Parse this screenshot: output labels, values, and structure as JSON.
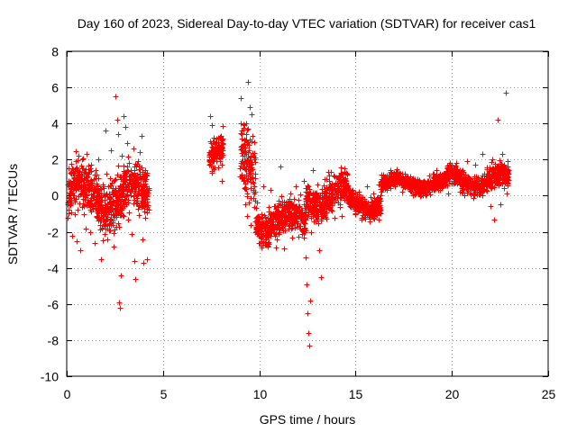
{
  "chart_data": {
    "type": "scatter",
    "title": "Day 160 of 2023, Sidereal Day-to-day VTEC variation (SDTVAR) for receiver cas1",
    "xlabel": "GPS time / hours",
    "ylabel": "SDTVAR / TECUs",
    "xlim": [
      0,
      25
    ],
    "ylim": [
      -10,
      8
    ],
    "x_ticks": [
      0,
      5,
      10,
      15,
      20,
      25
    ],
    "y_ticks": [
      -10,
      -8,
      -6,
      -4,
      -2,
      0,
      2,
      4,
      6,
      8
    ],
    "x_tick_labels": [
      "0",
      "5",
      "10",
      "15",
      "20",
      "25"
    ],
    "y_tick_labels": [
      "-10",
      "-8",
      "-6",
      "-4",
      "-2",
      "0",
      "2",
      "4",
      "6",
      "8"
    ],
    "grid": true,
    "marker": "+",
    "marker_color": "#ff0000",
    "series": [
      {
        "name": "SDTVAR",
        "segments": [
          {
            "x_start": 0.05,
            "x_end": 4.25,
            "base": 0.0,
            "spread": 2.3
          },
          {
            "x_start": 7.4,
            "x_end": 8.1,
            "base": 2.8,
            "spread": 1.4
          },
          {
            "x_start": 9.0,
            "x_end": 9.8,
            "base": 1.5,
            "spread": 3.2
          },
          {
            "x_start": 9.8,
            "x_end": 12.4,
            "base": -1.4,
            "spread": 1.5
          },
          {
            "x_start": 12.4,
            "x_end": 14.6,
            "base": 0.0,
            "spread": 1.6
          },
          {
            "x_start": 14.6,
            "x_end": 16.3,
            "base": -0.4,
            "spread": 0.9
          },
          {
            "x_start": 16.3,
            "x_end": 19.7,
            "base": 0.7,
            "spread": 0.7
          },
          {
            "x_start": 19.7,
            "x_end": 22.95,
            "base": 0.9,
            "spread": 1.0
          }
        ],
        "points": [
          [
            0.1,
            1.5
          ],
          [
            0.15,
            -0.5
          ],
          [
            0.22,
            1.2
          ],
          [
            0.28,
            -2.2
          ],
          [
            0.33,
            0.8
          ],
          [
            0.4,
            -1.0
          ],
          [
            0.45,
            1.9
          ],
          [
            0.5,
            -2.5
          ],
          [
            0.55,
            -0.8
          ],
          [
            0.6,
            1.0
          ],
          [
            0.68,
            -3.0
          ],
          [
            0.75,
            0.5
          ],
          [
            0.8,
            2.0
          ],
          [
            0.85,
            -0.2
          ],
          [
            0.9,
            1.3
          ],
          [
            1.0,
            -1.8
          ],
          [
            1.05,
            2.3
          ],
          [
            1.12,
            0.3
          ],
          [
            1.2,
            -2.0
          ],
          [
            1.25,
            1.7
          ],
          [
            1.3,
            -0.6
          ],
          [
            1.4,
            0.9
          ],
          [
            1.45,
            -2.6
          ],
          [
            1.5,
            1.4
          ],
          [
            1.6,
            -1.2
          ],
          [
            1.65,
            2.0
          ],
          [
            1.7,
            -0.4
          ],
          [
            1.8,
            -3.5
          ],
          [
            1.85,
            0.6
          ],
          [
            1.9,
            -1.6
          ],
          [
            2.0,
            3.6
          ],
          [
            2.05,
            1.2
          ],
          [
            2.1,
            -2.4
          ],
          [
            2.18,
            0.1
          ],
          [
            2.25,
            -1.9
          ],
          [
            2.3,
            2.5
          ],
          [
            2.4,
            0.4
          ],
          [
            2.45,
            -2.8
          ],
          [
            2.55,
            5.5
          ],
          [
            2.6,
            4.2
          ],
          [
            2.65,
            3.4
          ],
          [
            2.72,
            -5.9
          ],
          [
            2.75,
            -6.2
          ],
          [
            2.8,
            -4.4
          ],
          [
            2.85,
            2.2
          ],
          [
            2.9,
            0.8
          ],
          [
            2.95,
            4.4
          ],
          [
            3.05,
            3.8
          ],
          [
            3.1,
            -0.5
          ],
          [
            3.15,
            2.9
          ],
          [
            3.2,
            -1.3
          ],
          [
            3.25,
            1.8
          ],
          [
            3.3,
            0.2
          ],
          [
            3.38,
            -2.1
          ],
          [
            3.45,
            2.6
          ],
          [
            3.5,
            -3.6
          ],
          [
            3.55,
            -4.6
          ],
          [
            3.6,
            0.7
          ],
          [
            3.68,
            1.9
          ],
          [
            3.75,
            -0.6
          ],
          [
            3.8,
            2.4
          ],
          [
            3.9,
            3.3
          ],
          [
            3.95,
            -2.4
          ],
          [
            4.0,
            -3.7
          ],
          [
            4.05,
            1.4
          ],
          [
            4.15,
            -3.5
          ],
          [
            7.45,
            4.4
          ],
          [
            7.55,
            3.9
          ],
          [
            7.65,
            3.2
          ],
          [
            7.8,
            2.6
          ],
          [
            7.95,
            1.9
          ],
          [
            8.05,
            0.8
          ],
          [
            8.0,
            3.3
          ],
          [
            7.9,
            2.2
          ],
          [
            8.1,
            2.9
          ],
          [
            9.05,
            5.4
          ],
          [
            9.12,
            1.0
          ],
          [
            9.2,
            3.9
          ],
          [
            9.28,
            -0.5
          ],
          [
            9.35,
            -1.1
          ],
          [
            9.42,
            6.3
          ],
          [
            9.48,
            2.8
          ],
          [
            9.55,
            -1.6
          ],
          [
            9.62,
            4.5
          ],
          [
            9.7,
            0.2
          ],
          [
            9.78,
            -2.0
          ],
          [
            9.2,
            1.5
          ],
          [
            9.15,
            2.2
          ],
          [
            9.3,
            3.4
          ],
          [
            9.5,
            4.9
          ],
          [
            9.65,
            3.3
          ],
          [
            9.9,
            -0.4
          ],
          [
            10.0,
            -2.6
          ],
          [
            10.1,
            -1.0
          ],
          [
            10.2,
            0.5
          ],
          [
            10.3,
            -1.8
          ],
          [
            10.4,
            -2.7
          ],
          [
            10.5,
            -0.9
          ],
          [
            10.6,
            0.3
          ],
          [
            10.7,
            -2.0
          ],
          [
            10.8,
            -1.2
          ],
          [
            10.9,
            -2.4
          ],
          [
            11.0,
            -0.3
          ],
          [
            11.1,
            1.6
          ],
          [
            11.2,
            -1.6
          ],
          [
            11.3,
            -2.9
          ],
          [
            11.4,
            -0.7
          ],
          [
            11.5,
            -1.8
          ],
          [
            11.6,
            0.1
          ],
          [
            11.7,
            -2.3
          ],
          [
            11.8,
            -1.0
          ],
          [
            11.9,
            0.5
          ],
          [
            12.0,
            -1.5
          ],
          [
            12.1,
            -0.6
          ],
          [
            12.2,
            -2.1
          ],
          [
            12.3,
            0.8
          ],
          [
            12.4,
            -3.4
          ],
          [
            12.45,
            -4.9
          ],
          [
            12.5,
            -6.5
          ],
          [
            12.55,
            -7.6
          ],
          [
            12.6,
            -8.3
          ],
          [
            12.65,
            -5.8
          ],
          [
            12.7,
            -2.0
          ],
          [
            12.8,
            1.4
          ],
          [
            12.9,
            -0.9
          ],
          [
            13.0,
            0.6
          ],
          [
            13.1,
            -3.0
          ],
          [
            13.2,
            -4.5
          ],
          [
            13.25,
            -1.0
          ],
          [
            13.4,
            0.9
          ],
          [
            13.5,
            -0.3
          ],
          [
            13.6,
            1.3
          ],
          [
            13.7,
            -0.8
          ],
          [
            13.8,
            0.4
          ],
          [
            13.9,
            -1.2
          ],
          [
            14.0,
            1.0
          ],
          [
            14.1,
            -0.4
          ],
          [
            14.2,
            0.7
          ],
          [
            14.3,
            -1.1
          ],
          [
            14.4,
            1.5
          ],
          [
            14.5,
            0.0
          ],
          [
            14.7,
            -0.6
          ],
          [
            14.85,
            0.3
          ],
          [
            15.0,
            -1.0
          ],
          [
            15.15,
            0.2
          ],
          [
            15.3,
            -1.3
          ],
          [
            15.45,
            -0.2
          ],
          [
            15.6,
            0.5
          ],
          [
            15.75,
            -0.9
          ],
          [
            15.9,
            0.1
          ],
          [
            16.05,
            -0.7
          ],
          [
            16.2,
            0.6
          ],
          [
            16.4,
            0.9
          ],
          [
            16.6,
            0.3
          ],
          [
            16.8,
            1.3
          ],
          [
            17.0,
            0.6
          ],
          [
            17.2,
            1.1
          ],
          [
            17.4,
            0.2
          ],
          [
            17.6,
            1.0
          ],
          [
            17.8,
            0.4
          ],
          [
            18.0,
            0.0
          ],
          [
            18.2,
            0.9
          ],
          [
            18.4,
            0.5
          ],
          [
            18.6,
            0.1
          ],
          [
            18.8,
            1.1
          ],
          [
            19.0,
            0.6
          ],
          [
            19.2,
            1.4
          ],
          [
            19.4,
            0.3
          ],
          [
            19.6,
            0.8
          ],
          [
            19.8,
            0.1
          ],
          [
            20.0,
            0.7
          ],
          [
            20.2,
            1.0
          ],
          [
            20.4,
            0.2
          ],
          [
            20.6,
            1.3
          ],
          [
            20.8,
            1.9
          ],
          [
            21.0,
            0.5
          ],
          [
            21.2,
            1.7
          ],
          [
            21.4,
            0.8
          ],
          [
            21.6,
            2.3
          ],
          [
            21.8,
            1.2
          ],
          [
            22.0,
            -0.6
          ],
          [
            22.1,
            2.0
          ],
          [
            22.2,
            -1.3
          ],
          [
            22.3,
            1.5
          ],
          [
            22.4,
            4.2
          ],
          [
            22.5,
            -0.5
          ],
          [
            22.6,
            2.3
          ],
          [
            22.7,
            0.4
          ],
          [
            22.8,
            5.7
          ],
          [
            22.85,
            0.1
          ],
          [
            22.9,
            1.9
          ]
        ]
      }
    ]
  }
}
